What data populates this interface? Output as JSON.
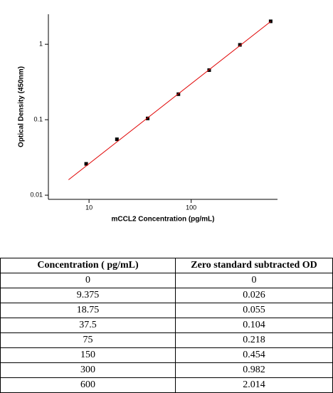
{
  "chart_data": {
    "type": "scatter",
    "xlabel": "mCCL2 Concentration (pg/mL)",
    "ylabel": "Optical Density (450nm)",
    "xlog": true,
    "ylog": true,
    "xlim": [
      4,
      700
    ],
    "ylim": [
      0.0088,
      2.5
    ],
    "xticks": [
      10,
      100
    ],
    "yticks": [
      0.01,
      0.1,
      1
    ],
    "series": [
      {
        "color": "#000000",
        "x": [
          9.375,
          18.75,
          37.5,
          75,
          150,
          300,
          600
        ],
        "values": [
          0.026,
          0.055,
          0.104,
          0.218,
          0.454,
          0.982,
          2.014
        ]
      },
      {
        "color": "#e00000",
        "x": [
          6.3,
          600
        ],
        "values": [
          0.016,
          2.0
        ]
      }
    ]
  },
  "table": {
    "header": [
      "Concentration ( pg/mL)",
      "Zero standard subtracted OD"
    ],
    "rows": [
      [
        "0",
        "0"
      ],
      [
        "9.375",
        "0.026"
      ],
      [
        "18.75",
        "0.055"
      ],
      [
        "37.5",
        "0.104"
      ],
      [
        "75",
        "0.218"
      ],
      [
        "150",
        "0.454"
      ],
      [
        "300",
        "0.982"
      ],
      [
        "600",
        "2.014"
      ]
    ]
  }
}
